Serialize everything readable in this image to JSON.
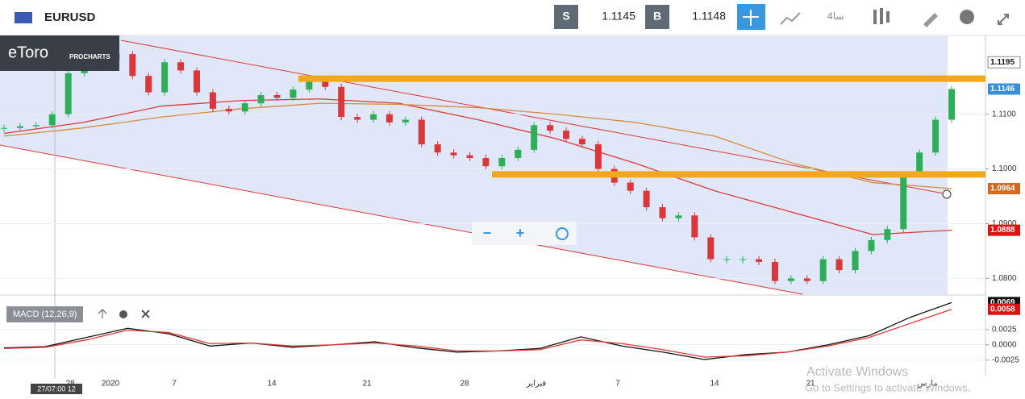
{
  "toolbar": {
    "symbol": "EURUSD",
    "sell_tag": "S",
    "sell_price": "1.1145",
    "buy_tag": "B",
    "buy_price": "1.1148",
    "timeframe": "4سا"
  },
  "logo": {
    "brand": "eToro",
    "sub": "PROCHARTS"
  },
  "macd_label": "MACD (12,26,9)",
  "zoom": {
    "minus": "−",
    "plus": "+"
  },
  "cursor_date": "27/07:00 12",
  "watermark": {
    "line1": "Activate Windows",
    "line2": "Go to Settings to activate Windows."
  },
  "x_labels": [
    "28",
    "2020",
    "7",
    "14",
    "21",
    "28",
    "فبراير",
    "7",
    "14",
    "21",
    "مارس"
  ],
  "chart_data": [
    {
      "type": "candlestick",
      "color_up": "#2fae5a",
      "color_down": "#d9373a",
      "values": [
        1.1075,
        1.1078,
        1.108,
        1.11,
        1.1175,
        1.119,
        1.12,
        1.121,
        1.117,
        1.114,
        1.1195,
        1.118,
        1.114,
        1.111,
        1.1105,
        1.112,
        1.1135,
        1.113,
        1.1145,
        1.116,
        1.115,
        1.1095,
        1.109,
        1.11,
        1.1085,
        1.109,
        1.1045,
        1.103,
        1.1025,
        1.102,
        1.1005,
        1.102,
        1.1035,
        1.108,
        1.107,
        1.1055,
        1.1045,
        1.1,
        1.0975,
        1.096,
        1.093,
        1.091,
        1.0915,
        1.0875,
        1.0835,
        1.0835,
        1.0835,
        1.083,
        1.0795,
        1.08,
        1.0795,
        1.0835,
        1.0815,
        1.085,
        1.087,
        1.089,
        1.099,
        1.103,
        1.109,
        1.1146
      ],
      "series": [
        {
          "name": "MA1",
          "color": "#e0383a",
          "values": [
            1.1065,
            1.1085,
            1.1115,
            1.1125,
            1.1128,
            1.112,
            1.109,
            1.1055,
            1.101,
            1.096,
            1.092,
            1.088,
            1.0888
          ]
        },
        {
          "name": "MA2",
          "color": "#d98a3a",
          "values": [
            1.106,
            1.1075,
            1.1095,
            1.111,
            1.112,
            1.1118,
            1.1112,
            1.11,
            1.1085,
            1.106,
            1.101,
            1.0975,
            1.0964
          ]
        }
      ],
      "levels": [
        1.1165,
        1.099
      ],
      "level_color": "#f0a81c",
      "ylim": [
        1.0771,
        1.1244
      ],
      "yticks": [
        {
          "value": 1.11,
          "label": "1.1100"
        },
        {
          "value": 1.1,
          "label": "1.1000"
        },
        {
          "value": 1.09,
          "label": "1.0900"
        },
        {
          "value": 1.08,
          "label": "1.0800"
        }
      ],
      "price_labels": [
        {
          "value": 1.1195,
          "label": "1.1195",
          "color": "#ffffff"
        },
        {
          "value": 1.1146,
          "label": "1.1146",
          "color": "#3a8fd9"
        },
        {
          "value": 1.0964,
          "label": "1.0964",
          "color": "#d2691e"
        },
        {
          "value": 1.0888,
          "label": "1.0888",
          "color": "#e01010"
        }
      ]
    },
    {
      "type": "line",
      "series": [
        {
          "name": "MACD",
          "color": "#111111",
          "values": [
            -0.0005,
            -0.0003,
            0.0012,
            0.0027,
            0.0018,
            -0.0002,
            0.0003,
            -0.0004,
            0,
            0.0005,
            -0.0005,
            -0.0012,
            -0.001,
            -0.0006,
            0.0013,
            -0.0002,
            -0.0012,
            -0.0024,
            -0.0016,
            -0.0012,
            0,
            0.0015,
            0.0045,
            0.0069
          ]
        },
        {
          "name": "Signal",
          "color": "#e0383a",
          "values": [
            -0.0006,
            -0.0004,
            0.0008,
            0.0024,
            0.002,
            0.0002,
            0.0003,
            -0.0002,
            0,
            0.0003,
            -0.0002,
            -0.001,
            -0.001,
            -0.0008,
            0.0008,
            0.0002,
            -0.0008,
            -0.002,
            -0.0018,
            -0.0012,
            -0.0002,
            0.0012,
            0.0035,
            0.0058
          ]
        }
      ],
      "ylim": [
        -0.0049,
        0.008
      ],
      "yticks": [
        0.0025,
        {
          "value": 0,
          "label": "0.0000"
        },
        -0.0025
      ],
      "price_labels": [
        {
          "value": 0.0069,
          "label": "0.0069",
          "color": "#111111"
        },
        {
          "value": 0.0058,
          "label": "0.0058",
          "color": "#e01010"
        }
      ]
    }
  ]
}
